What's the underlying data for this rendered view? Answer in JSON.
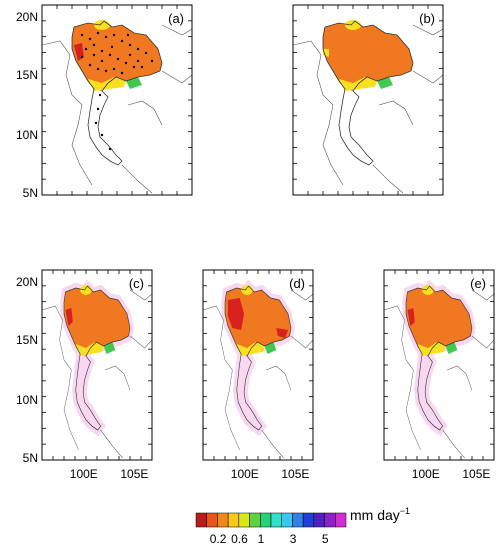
{
  "figure": {
    "panels": [
      {
        "id": "a",
        "label": "(a)",
        "lat_ticks": [
          "20N",
          "15N",
          "10N",
          "5N"
        ],
        "lon_ticks": [],
        "stations_marked": true
      },
      {
        "id": "b",
        "label": "(b)",
        "lat_ticks": [],
        "lon_ticks": []
      },
      {
        "id": "c",
        "label": "(c)",
        "lat_ticks": [
          "20N",
          "15N",
          "10N",
          "5N"
        ],
        "lon_ticks": [
          "100E",
          "105E"
        ]
      },
      {
        "id": "d",
        "label": "(d)",
        "lat_ticks": [],
        "lon_ticks": [
          "100E",
          "105E"
        ]
      },
      {
        "id": "e",
        "label": "(e)",
        "lat_ticks": [],
        "lon_ticks": [
          "100E",
          "105E"
        ]
      }
    ],
    "colorbar": {
      "unit_main": "mm day",
      "unit_exp": "−1",
      "tick_labels": [
        "0.2",
        "0.6",
        "1",
        "3",
        "5"
      ],
      "colors": [
        "#b81c1c",
        "#e8541a",
        "#f08a1e",
        "#f8c81a",
        "#d8e818",
        "#60d040",
        "#28d078",
        "#30e0c8",
        "#38c8f0",
        "#3080e8",
        "#2040d8",
        "#5020c0",
        "#9020c8",
        "#d030d0"
      ]
    }
  },
  "colors": {
    "orange": "#f07820",
    "red": "#d82020",
    "yellow": "#f8e020",
    "green": "#40c850",
    "cyan": "#38d8d8",
    "blue": "#3050e0",
    "purple": "#a020c0",
    "magenta": "#e040e0"
  }
}
